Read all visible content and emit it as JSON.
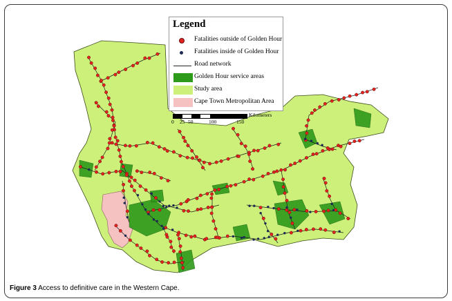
{
  "legend": {
    "title": "Legend",
    "items": [
      {
        "label": "Fatalities outside of Golden Hour",
        "symbol": "red-dot",
        "color": "#e2221e"
      },
      {
        "label": "Fatalities inside of Golden Hour",
        "symbol": "navy-dot",
        "color": "#1d2a54"
      },
      {
        "label": "Road network",
        "symbol": "line",
        "color": "#222222"
      },
      {
        "label": "Golden Hour service areas",
        "symbol": "box",
        "color": "#2e9a1a"
      },
      {
        "label": "Study area",
        "symbol": "box",
        "color": "#ccf07a"
      },
      {
        "label": "Cape Town Metropolitan Area",
        "symbol": "box",
        "color": "#f6c1c1"
      }
    ]
  },
  "scale_bar": {
    "unit": "Kilometers",
    "ticks": [
      "0",
      "25",
      "50",
      "100",
      "150"
    ]
  },
  "caption": {
    "label": "Figure 3",
    "text": " Access to definitive care in the Western Cape."
  },
  "colors": {
    "study_area": "#ccf07a",
    "golden_hour": "#2e9a1a",
    "metro": "#f6c1c1",
    "road": "#1a1a1a",
    "outside_dot": "#e2221e",
    "inside_dot": "#1d2a54"
  }
}
